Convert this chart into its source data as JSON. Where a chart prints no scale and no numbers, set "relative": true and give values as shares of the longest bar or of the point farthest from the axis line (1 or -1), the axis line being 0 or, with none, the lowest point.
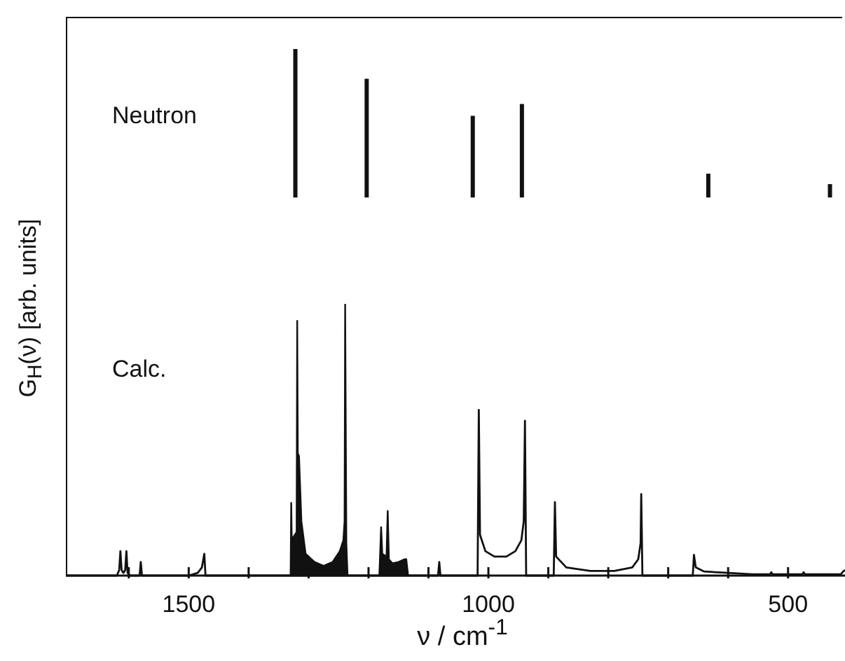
{
  "chart_data": [
    {
      "type": "bar",
      "title": "Neutron",
      "relative": true,
      "xlim": [
        1705,
        405
      ],
      "x": [
        1322,
        1203,
        1026,
        944,
        633,
        430
      ],
      "values": [
        1,
        0.8,
        0.55,
        0.63,
        0.16,
        0.09
      ],
      "color": "#111111"
    },
    {
      "type": "line",
      "title": "Calc.",
      "relative": true,
      "xlabel": "ν / cm$^{-1}$",
      "ylabel": "G$_{H}$(ν) [arb. units]",
      "xlim": [
        1705,
        405
      ],
      "xticks": [
        {
          "value": 1600,
          "label": null
        },
        1500,
        {
          "value": 1400,
          "label": null
        },
        {
          "value": 1300,
          "label": null
        },
        {
          "value": 1200,
          "label": null
        },
        {
          "value": 1100,
          "label": null
        },
        1000,
        {
          "value": 900,
          "label": null
        },
        {
          "value": 800,
          "label": null
        },
        {
          "value": 700,
          "label": null
        },
        {
          "value": 600,
          "label": null
        },
        500
      ],
      "series": [
        {
          "type": "line",
          "color": "#111111",
          "x": [
            1705,
            1620,
            1616,
            1614,
            1612,
            1609,
            1606,
            1604,
            1602,
            1598,
            1582,
            1580,
            1578,
            1500,
            1485,
            1478,
            1474,
            1472,
            1330,
            1235,
            1182,
            1134,
            1084,
            1082,
            1080,
            1018,
            1016,
            1014,
            1005,
            990,
            970,
            955,
            945,
            941,
            939,
            937,
            891,
            889,
            887,
            870,
            830,
            790,
            760,
            750,
            746,
            745,
            743,
            659,
            657,
            654,
            640,
            600,
            560,
            530,
            528,
            526,
            476,
            474,
            472,
            412,
            408,
            405
          ],
          "values": [
            0,
            0,
            0.02,
            0.09,
            0.02,
            0.01,
            0.02,
            0.09,
            0.01,
            0,
            0,
            0.05,
            0,
            0,
            0.01,
            0.03,
            0.08,
            0,
            0,
            0,
            0,
            0,
            0,
            0.05,
            0,
            0,
            0.61,
            0.15,
            0.09,
            0.07,
            0.07,
            0.09,
            0.13,
            0.2,
            0.57,
            0,
            0,
            0.27,
            0.07,
            0.03,
            0.017,
            0.017,
            0.03,
            0.06,
            0.12,
            0.3,
            0,
            0,
            0.076,
            0.03,
            0.015,
            0.01,
            0.005,
            0.005,
            0.012,
            0.005,
            0.005,
            0.012,
            0.005,
            0.005,
            0.015,
            0.02
          ]
        },
        {
          "type": "area",
          "color": "#111111",
          "x": [
            1330,
            1329,
            1328,
            1326,
            1320,
            1319,
            1318,
            1316,
            1312,
            1305,
            1290,
            1275,
            1260,
            1248,
            1242,
            1240,
            1239,
            1237,
            1235,
            1200,
            1182,
            1179,
            1177,
            1170,
            1168,
            1166,
            1160,
            1150,
            1140,
            1137,
            1134
          ],
          "values": [
            0,
            0.27,
            0.12,
            0.14,
            0.16,
            0.94,
            0.45,
            0.44,
            0.2,
            0.08,
            0.05,
            0.036,
            0.05,
            0.09,
            0.13,
            0.2,
            1,
            0.12,
            0,
            null,
            0,
            0.18,
            0.08,
            0.07,
            0.24,
            0.06,
            0.045,
            0.05,
            0.06,
            0.06,
            0
          ]
        }
      ]
    }
  ]
}
